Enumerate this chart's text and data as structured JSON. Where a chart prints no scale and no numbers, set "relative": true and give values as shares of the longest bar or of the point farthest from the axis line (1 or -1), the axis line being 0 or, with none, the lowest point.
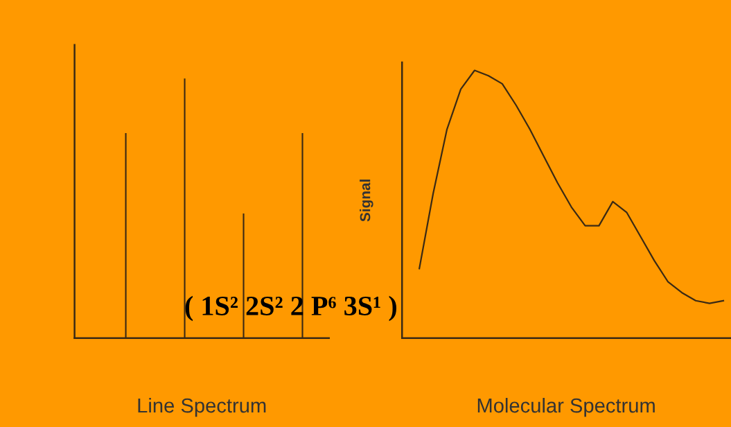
{
  "chart_data": [
    {
      "type": "bar",
      "relative": true,
      "xlabel": "Line Spectrum",
      "color": "#3b2a14",
      "annotations": [
        "( 1S² 2S² 2 P⁶ 3S¹ )"
      ],
      "categories": [
        null,
        null,
        null,
        null
      ],
      "values": [
        0.79,
        1,
        0.48,
        0.79
      ]
    },
    {
      "type": "line",
      "relative": true,
      "xlabel": "Molecular Spectrum",
      "ylabel": "Signal",
      "color": "#3b2a14",
      "categories": [
        null,
        null,
        null,
        null,
        null,
        null,
        null,
        null,
        null,
        null,
        null,
        null,
        null,
        null,
        null,
        null,
        null,
        null,
        null,
        null,
        null,
        null,
        null
      ],
      "values": [
        0.26,
        0.54,
        0.78,
        0.93,
        1,
        0.98,
        0.95,
        0.87,
        0.78,
        0.68,
        0.58,
        0.49,
        0.42,
        0.42,
        0.51,
        0.47,
        0.38,
        0.29,
        0.21,
        0.17,
        0.14,
        0.13,
        0.14
      ]
    }
  ]
}
